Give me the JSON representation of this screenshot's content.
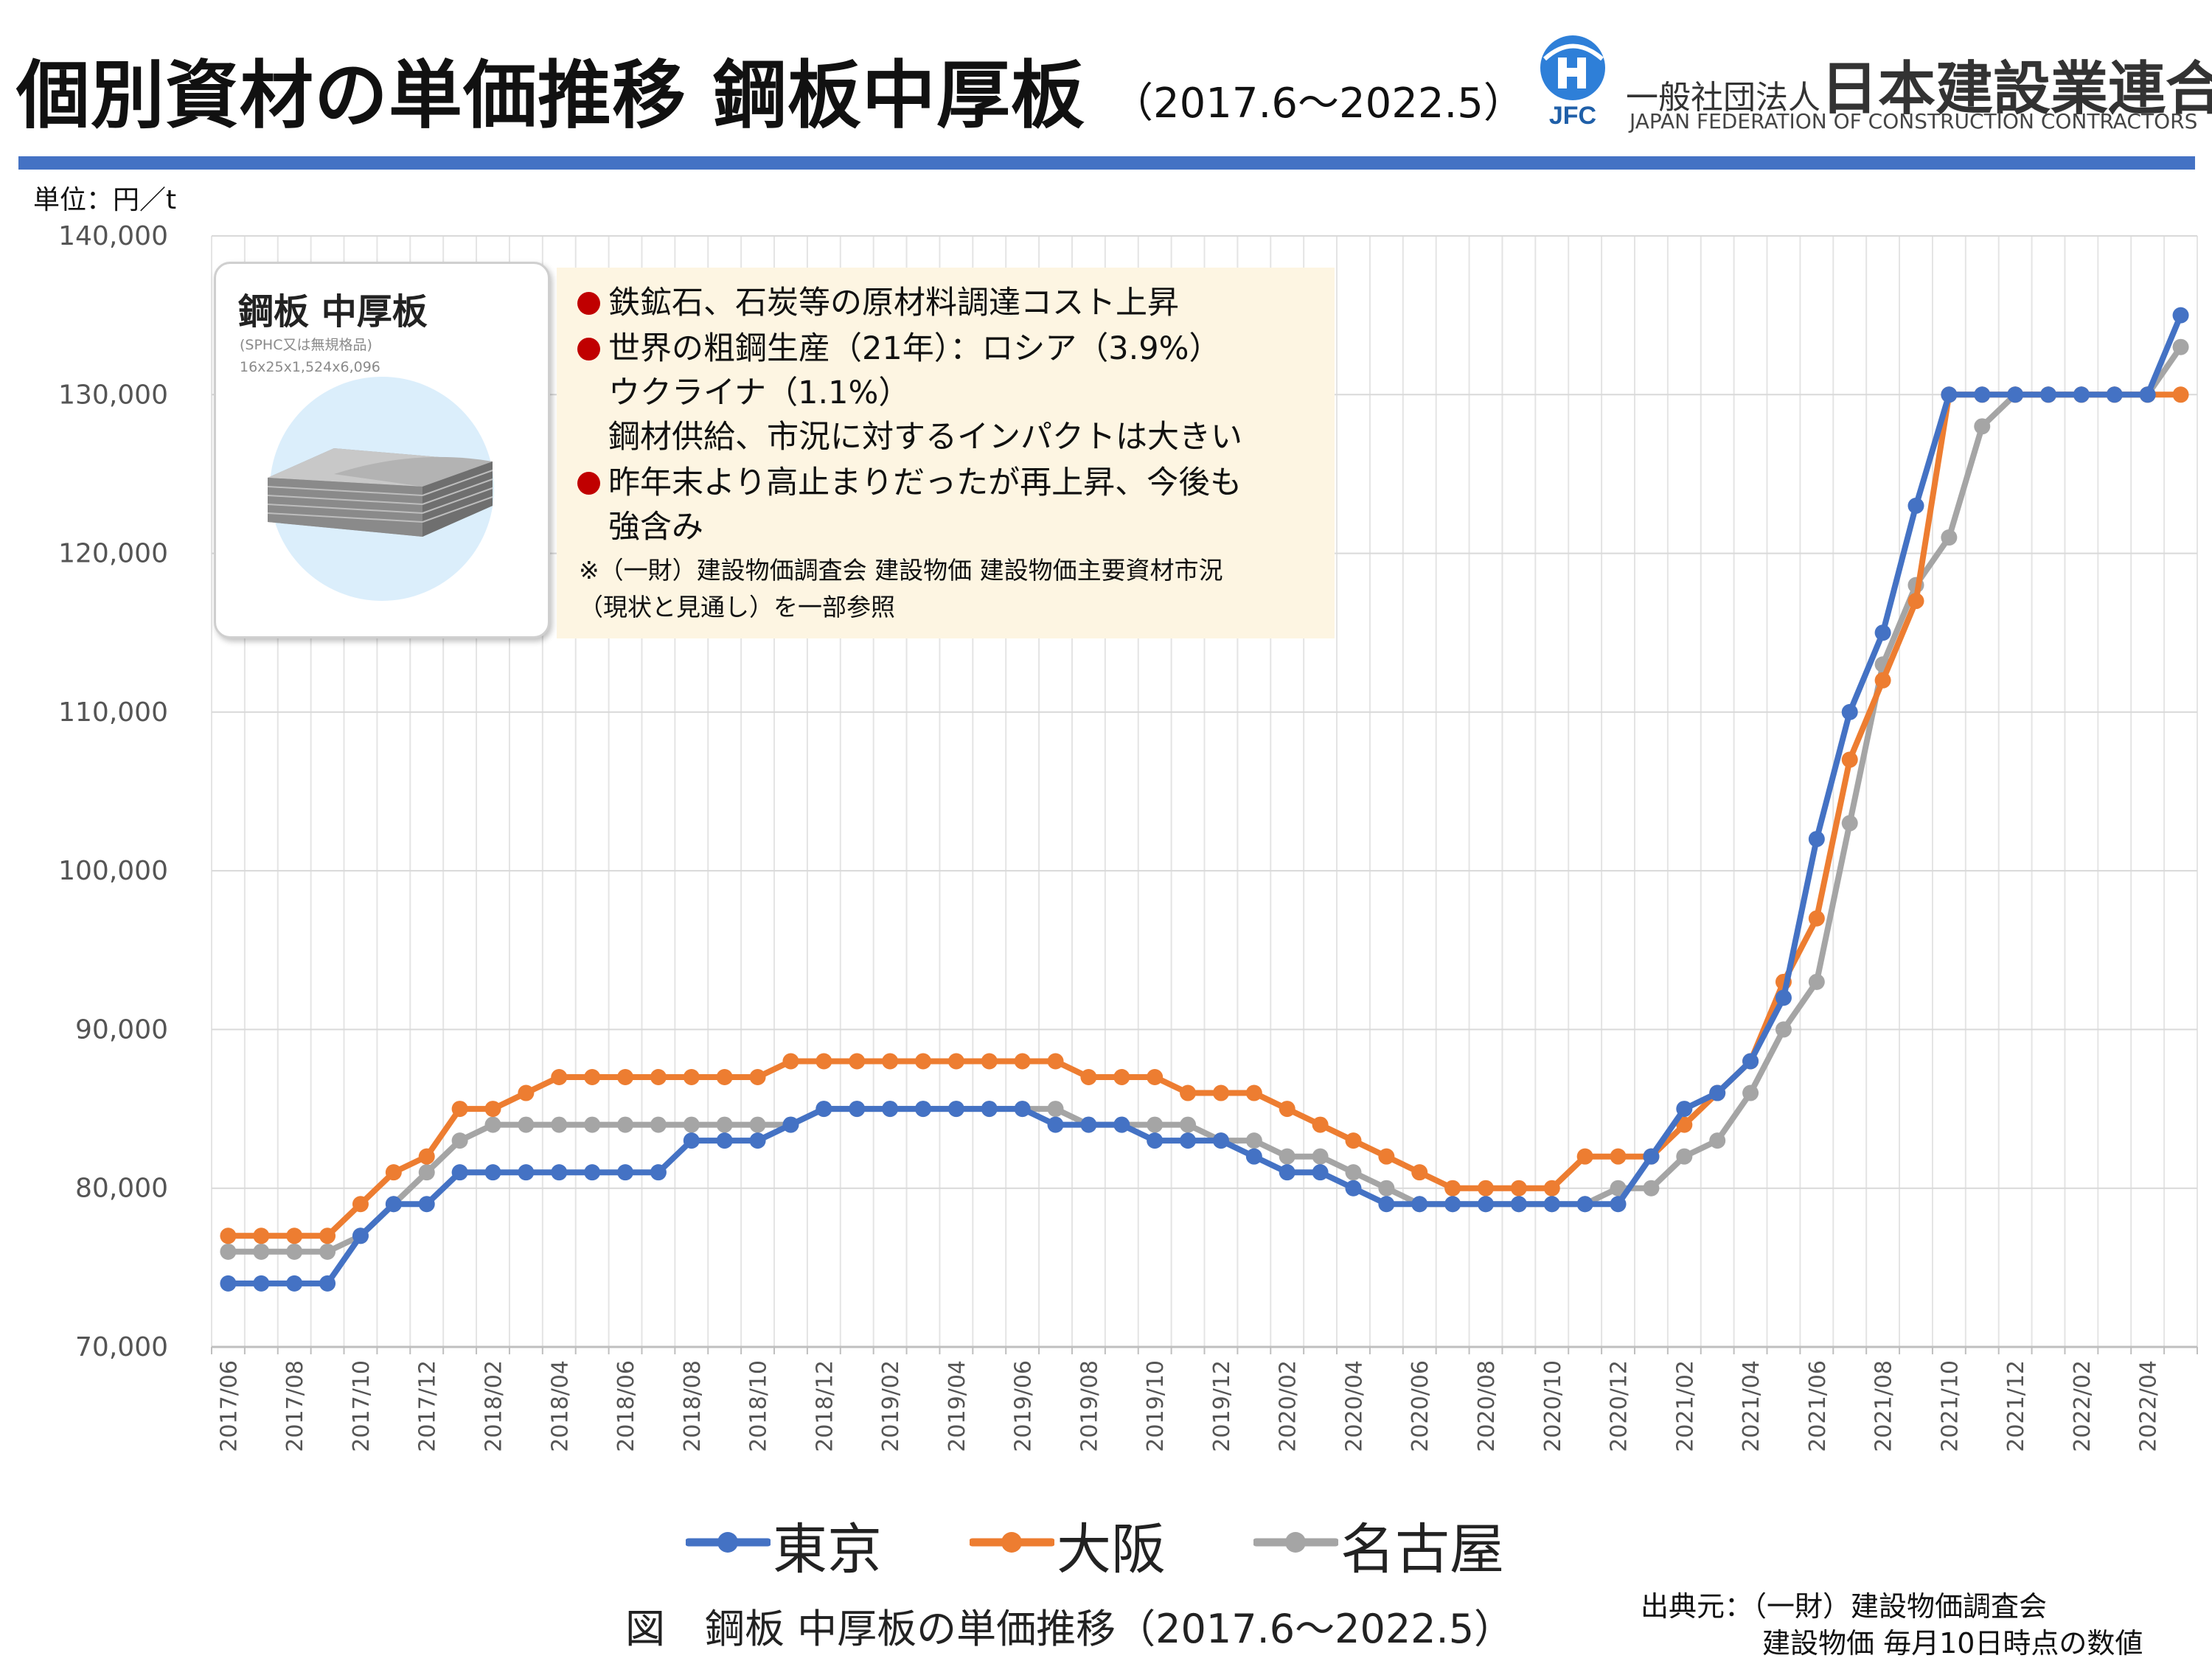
{
  "header": {
    "title": "個別資材の単価推移 鋼板中厚板",
    "period": "（2017.6～2022.5）",
    "org_prefix": "一般社団法人",
    "org_name": "日本建設業連合会",
    "org_name_en": "JAPAN FEDERATION OF CONSTRUCTION CONTRACTORS",
    "logo_text": "JFC"
  },
  "photo_card": {
    "title": "鋼板 中厚板",
    "spec_line1": "(SPHC又は無規格品)",
    "spec_line2": "16x25x1,524x6,096"
  },
  "notes": {
    "item1": "鉄鉱石、石炭等の原材料調達コスト上昇",
    "item2_line1": "世界の粗鋼生産（21年）：ロシア（3.9%）",
    "item2_line2": "ウクライナ（1.1%）",
    "item2_line3": "鋼材供給、市況に対するインパクトは大きい",
    "item3_line1": "昨年末より高止まりだったが再上昇、今後も",
    "item3_line2": "強含み",
    "ref_line1": "※（一財）建設物価調査会 建設物価 建設物価主要資材市況",
    "ref_line2": "（現状と見通し）を一部参照"
  },
  "caption": "図　鋼板 中厚板の単価推移（2017.6～2022.5）",
  "source": {
    "line1": "出典元：（一財）建設物価調査会",
    "line2": "建設物価 毎月10日時点の数値"
  },
  "colors": {
    "tokyo": "#4472c4",
    "osaka": "#ed7d31",
    "nagoya": "#a5a5a5",
    "accent_rule": "#4472c4",
    "bullet": "#c00000",
    "note_bg": "#fdf5e2"
  },
  "chart_data": {
    "type": "line",
    "unit_label": "単位：円／t",
    "ylim": [
      70000,
      140000
    ],
    "y_ticks": [
      70000,
      80000,
      90000,
      100000,
      110000,
      120000,
      130000,
      140000
    ],
    "y_tick_labels": [
      "70,000",
      "80,000",
      "90,000",
      "100,000",
      "110,000",
      "120,000",
      "130,000",
      "140,000"
    ],
    "x_tick_labels": [
      "2017/06",
      "2017/08",
      "2017/10",
      "2017/12",
      "2018/02",
      "2018/04",
      "2018/06",
      "2018/08",
      "2018/10",
      "2018/12",
      "2019/02",
      "2019/04",
      "2019/06",
      "2019/08",
      "2019/10",
      "2019/12",
      "2020/02",
      "2020/04",
      "2020/06",
      "2020/08",
      "2020/10",
      "2020/12",
      "2021/02",
      "2021/04",
      "2021/06",
      "2021/08",
      "2021/10",
      "2021/12",
      "2022/02",
      "2022/04"
    ],
    "x": [
      "2017/06",
      "2017/07",
      "2017/08",
      "2017/09",
      "2017/10",
      "2017/11",
      "2017/12",
      "2018/01",
      "2018/02",
      "2018/03",
      "2018/04",
      "2018/05",
      "2018/06",
      "2018/07",
      "2018/08",
      "2018/09",
      "2018/10",
      "2018/11",
      "2018/12",
      "2019/01",
      "2019/02",
      "2019/03",
      "2019/04",
      "2019/05",
      "2019/06",
      "2019/07",
      "2019/08",
      "2019/09",
      "2019/10",
      "2019/11",
      "2019/12",
      "2020/01",
      "2020/02",
      "2020/03",
      "2020/04",
      "2020/05",
      "2020/06",
      "2020/07",
      "2020/08",
      "2020/09",
      "2020/10",
      "2020/11",
      "2020/12",
      "2021/01",
      "2021/02",
      "2021/03",
      "2021/04",
      "2021/05",
      "2021/06",
      "2021/07",
      "2021/08",
      "2021/09",
      "2021/10",
      "2021/11",
      "2021/12",
      "2022/01",
      "2022/02",
      "2022/03",
      "2022/04",
      "2022/05"
    ],
    "grid": true,
    "legend_position": "bottom",
    "series": [
      {
        "name": "東京",
        "color": "#4472c4",
        "values": [
          74000,
          74000,
          74000,
          74000,
          77000,
          79000,
          79000,
          81000,
          81000,
          81000,
          81000,
          81000,
          81000,
          81000,
          83000,
          83000,
          83000,
          84000,
          85000,
          85000,
          85000,
          85000,
          85000,
          85000,
          85000,
          84000,
          84000,
          84000,
          83000,
          83000,
          83000,
          82000,
          81000,
          81000,
          80000,
          79000,
          79000,
          79000,
          79000,
          79000,
          79000,
          79000,
          79000,
          82000,
          85000,
          86000,
          88000,
          92000,
          102000,
          110000,
          115000,
          123000,
          130000,
          130000,
          130000,
          130000,
          130000,
          130000,
          130000,
          135000
        ]
      },
      {
        "name": "大阪",
        "color": "#ed7d31",
        "values": [
          77000,
          77000,
          77000,
          77000,
          79000,
          81000,
          82000,
          85000,
          85000,
          86000,
          87000,
          87000,
          87000,
          87000,
          87000,
          87000,
          87000,
          88000,
          88000,
          88000,
          88000,
          88000,
          88000,
          88000,
          88000,
          88000,
          87000,
          87000,
          87000,
          86000,
          86000,
          86000,
          85000,
          84000,
          83000,
          82000,
          81000,
          80000,
          80000,
          80000,
          80000,
          82000,
          82000,
          82000,
          84000,
          86000,
          88000,
          93000,
          97000,
          107000,
          112000,
          117000,
          130000,
          130000,
          130000,
          130000,
          130000,
          130000,
          130000,
          130000
        ]
      },
      {
        "name": "名古屋",
        "color": "#a5a5a5",
        "values": [
          76000,
          76000,
          76000,
          76000,
          77000,
          79000,
          81000,
          83000,
          84000,
          84000,
          84000,
          84000,
          84000,
          84000,
          84000,
          84000,
          84000,
          84000,
          85000,
          85000,
          85000,
          85000,
          85000,
          85000,
          85000,
          85000,
          84000,
          84000,
          84000,
          84000,
          83000,
          83000,
          82000,
          82000,
          81000,
          80000,
          79000,
          79000,
          79000,
          79000,
          79000,
          79000,
          80000,
          80000,
          82000,
          83000,
          86000,
          90000,
          93000,
          103000,
          113000,
          118000,
          121000,
          128000,
          130000,
          130000,
          130000,
          130000,
          130000,
          133000
        ]
      }
    ]
  }
}
